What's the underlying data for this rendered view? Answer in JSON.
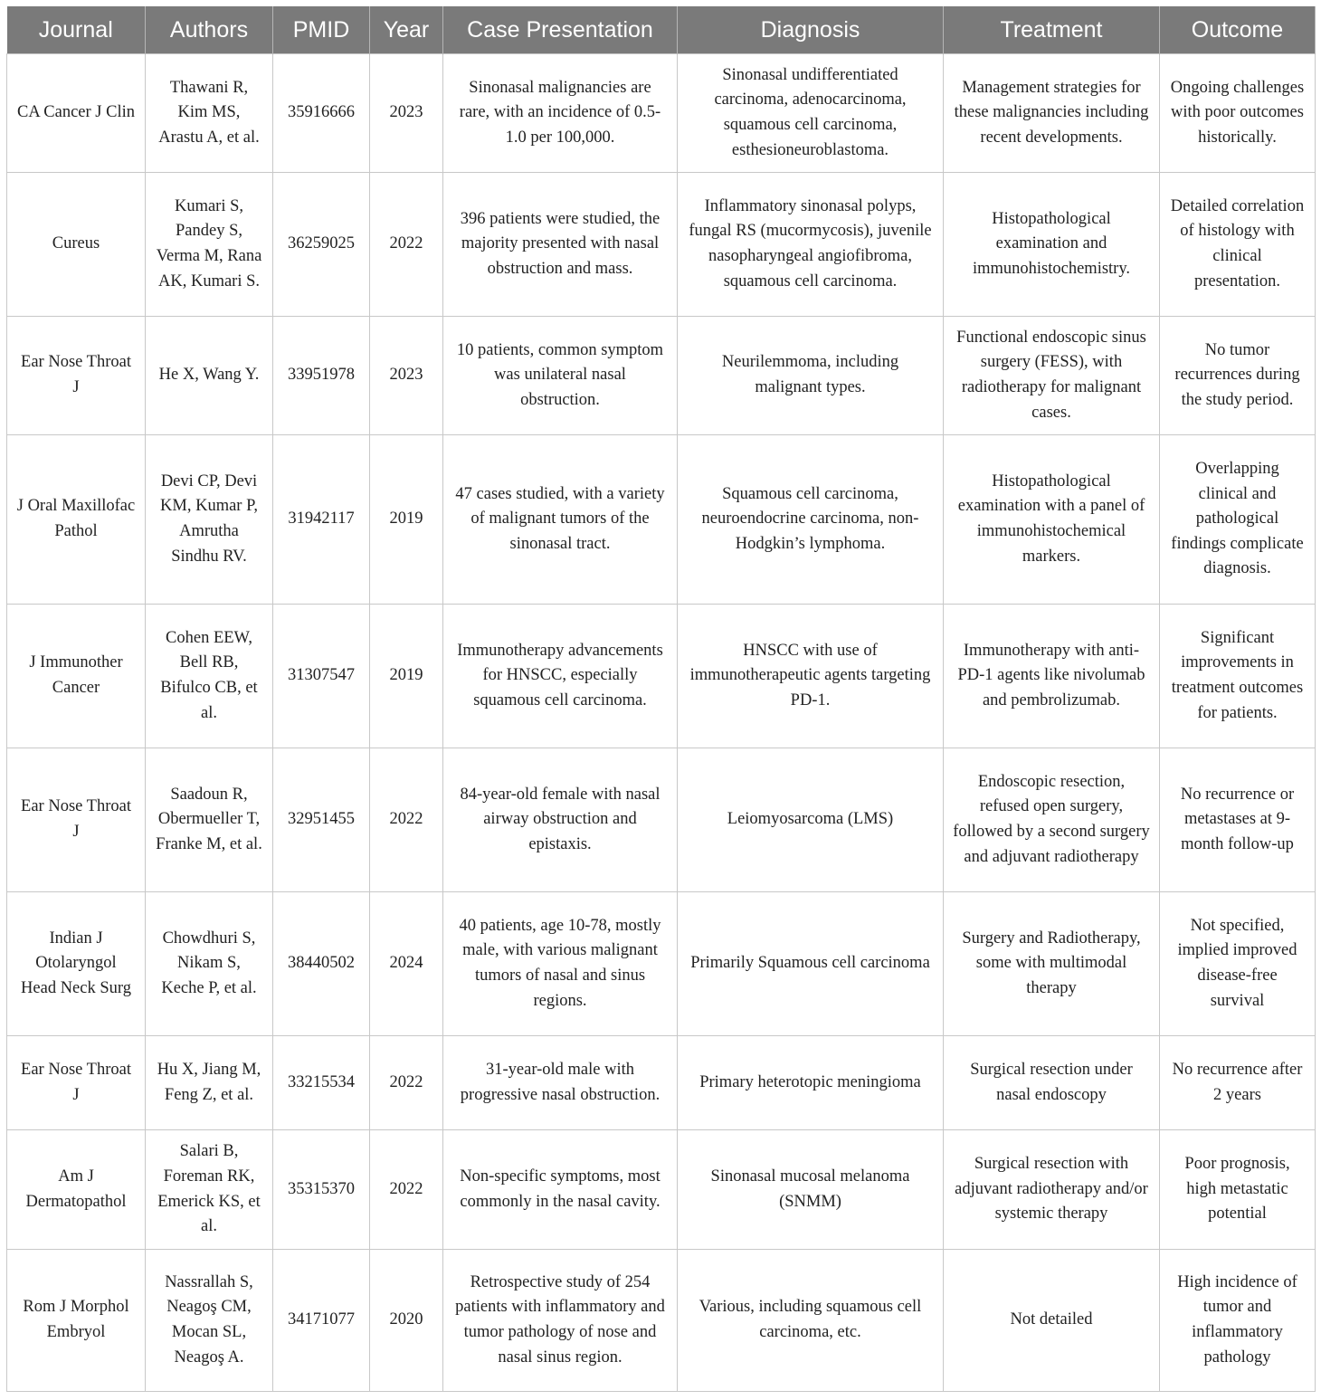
{
  "headers": [
    "Journal",
    "Authors",
    "PMID",
    "Year",
    "Case Presentation",
    "Diagnosis",
    "Treatment",
    "Outcome"
  ],
  "rows": [
    [
      "CA Cancer J Clin",
      "Thawani R, Kim MS, Arastu A, et al.",
      "35916666",
      "2023",
      "Sinonasal malignancies are rare, with an incidence of 0.5-1.0 per 100,000.",
      "Sinonasal undifferentiated carcinoma, adenocarcinoma, squamous cell carcinoma, esthesioneuroblastoma.",
      "Management strategies for these malignancies including recent developments.",
      "Ongoing challenges with poor outcomes historically."
    ],
    [
      "Cureus",
      "Kumari S, Pandey S, Verma M, Rana AK, Kumari S.",
      "36259025",
      "2022",
      "396 patients were studied, the majority presented with nasal obstruction and mass.",
      "Inflammatory sinonasal polyps, fungal RS (mucormycosis), juvenile nasopharyngeal angiofibroma, squamous cell carcinoma.",
      "Histopathological examination and immunohistochemistry.",
      "Detailed correlation of histology with clinical presentation."
    ],
    [
      "Ear Nose Throat J",
      "He X, Wang Y.",
      "33951978",
      "2023",
      "10 patients, common symptom was unilateral nasal obstruction.",
      "Neurilemmoma, including malignant types.",
      "Functional endoscopic sinus surgery (FESS), with radiotherapy for malignant cases.",
      "No tumor recurrences during the study period."
    ],
    [
      "J Oral Maxillofac Pathol",
      "Devi CP, Devi KM, Kumar P, Amrutha Sindhu RV.",
      "31942117",
      "2019",
      "47 cases studied, with a variety of malignant tumors of the sinonasal tract.",
      "Squamous cell carcinoma, neuroendocrine carcinoma, non-Hodgkin’s lymphoma.",
      "Histopathological examination with a panel of immunohistochemical markers.",
      "Overlapping clinical and pathological findings complicate diagnosis."
    ],
    [
      "J Immunother Cancer",
      "Cohen EEW, Bell RB, Bifulco CB, et al.",
      "31307547",
      "2019",
      "Immunotherapy advancements for HNSCC, especially squamous cell carcinoma.",
      "HNSCC with use of immunotherapeutic agents targeting PD-1.",
      "Immunotherapy with anti-PD-1 agents like nivolumab and pembrolizumab.",
      "Significant improvements in treatment outcomes for patients."
    ],
    [
      "Ear Nose Throat J",
      "Saadoun R, Obermueller T, Franke M, et al.",
      "32951455",
      "2022",
      "84-year-old female with nasal airway obstruction and epistaxis.",
      "Leiomyosarcoma (LMS)",
      "Endoscopic resection, refused open surgery, followed by a second surgery and adjuvant radiotherapy",
      "No recurrence or metastases at 9-month follow-up"
    ],
    [
      "Indian J Otolaryngol Head Neck Surg",
      "Chowdhuri S, Nikam S, Keche P, et al.",
      "38440502",
      "2024",
      "40 patients, age 10-78, mostly male, with various malignant tumors of nasal and sinus regions.",
      "Primarily Squamous cell carcinoma",
      "Surgery and Radiotherapy, some with multimodal therapy",
      "Not specified, implied improved disease-free survival"
    ],
    [
      "Ear Nose Throat J",
      "Hu X, Jiang M, Feng Z, et al.",
      "33215534",
      "2022",
      "31-year-old male with progressive nasal obstruction.",
      "Primary heterotopic meningioma",
      "Surgical resection under nasal endoscopy",
      "No recurrence after 2 years"
    ],
    [
      "Am J Dermatopathol",
      "Salari B, Foreman RK, Emerick KS, et al.",
      "35315370",
      "2022",
      "Non-specific symptoms, most commonly in the nasal cavity.",
      "Sinonasal mucosal melanoma (SNMM)",
      "Surgical resection with adjuvant radiotherapy and/or systemic therapy",
      "Poor prognosis, high metastatic potential"
    ],
    [
      "Rom J Morphol Embryol",
      "Nassrallah S, Neagoş CM, Mocan SL, Neagoş A.",
      "34171077",
      "2020",
      "Retrospective study of 254 patients with inflammatory and tumor pathology of nose and nasal sinus region.",
      "Various, including squamous cell carcinoma, etc.",
      "Not detailed",
      "High incidence of tumor and inflammatory pathology"
    ]
  ]
}
